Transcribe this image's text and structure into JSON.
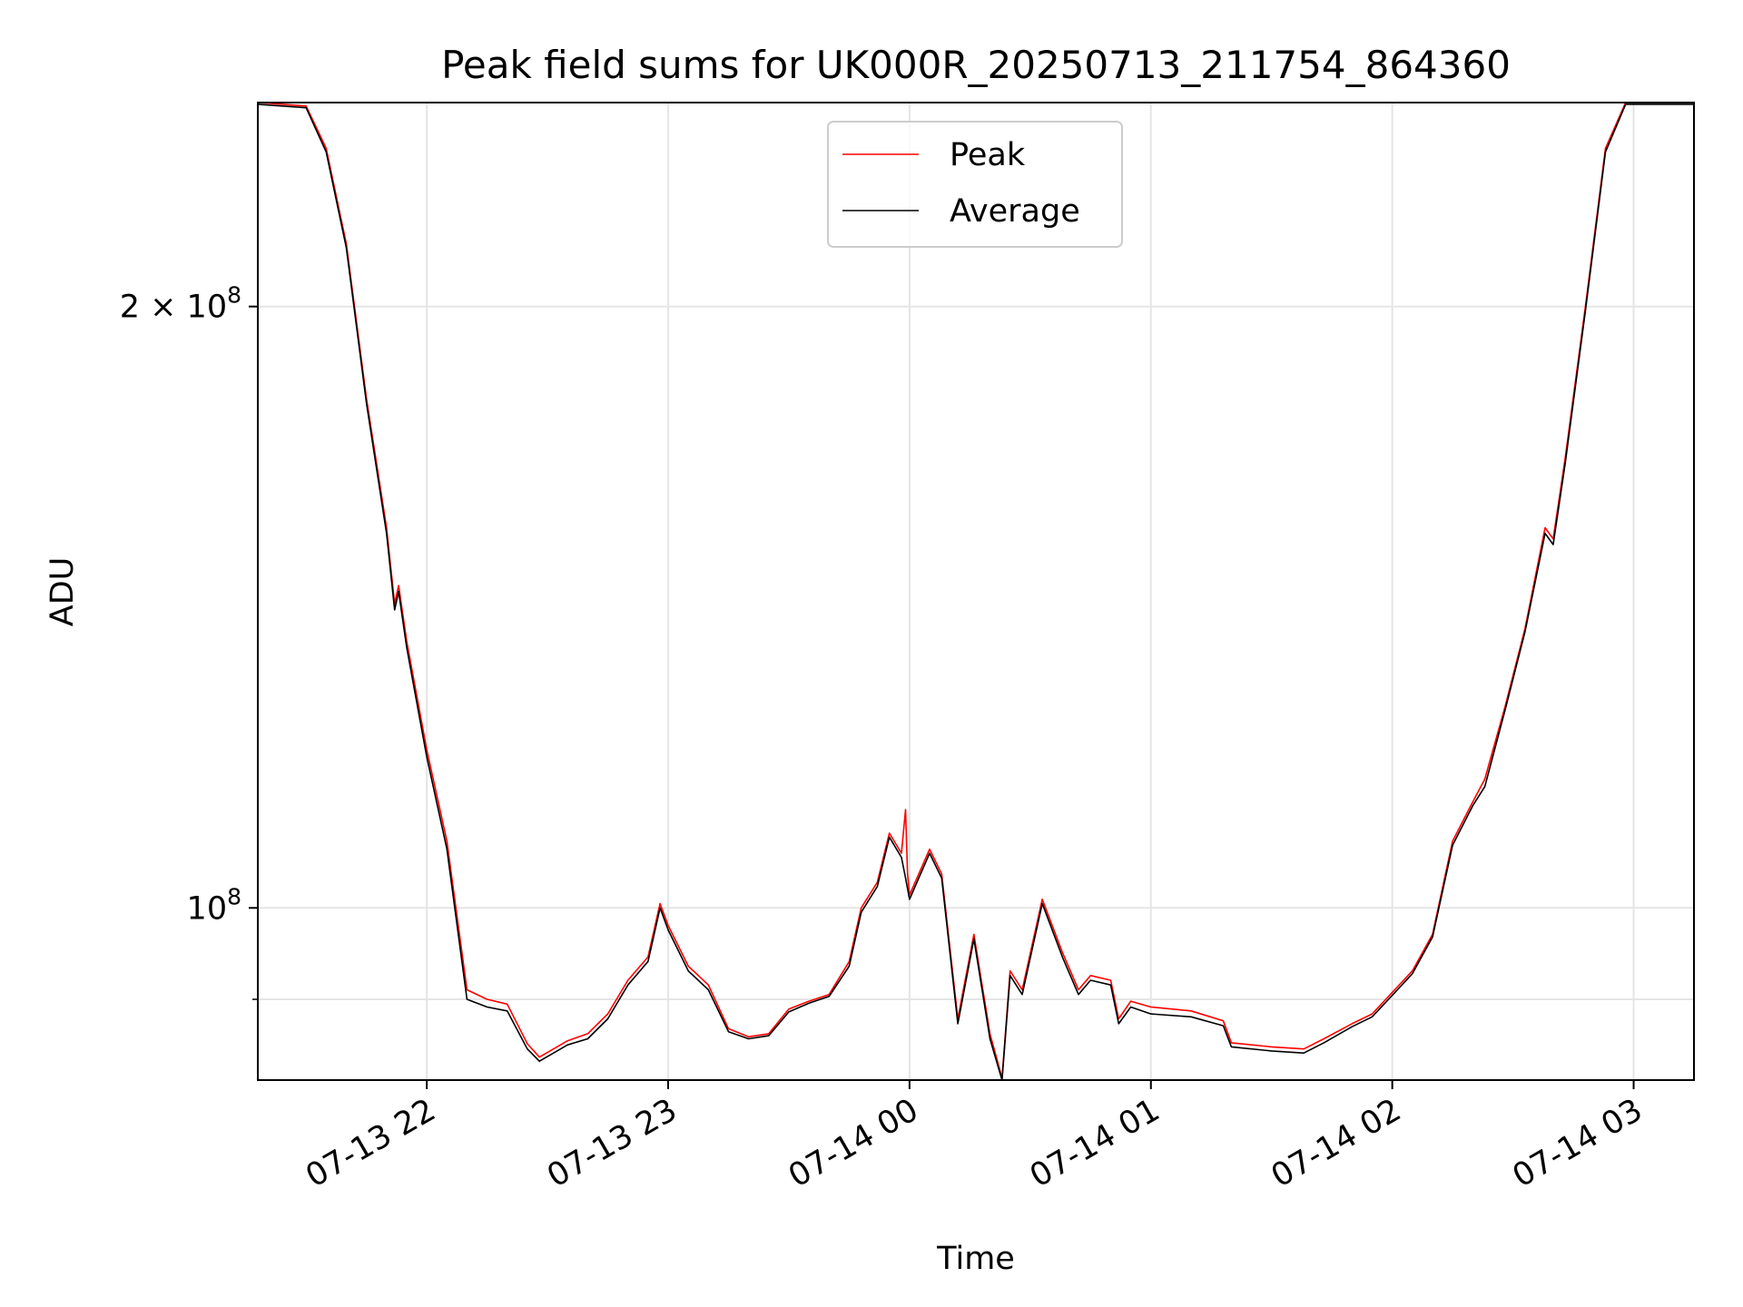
{
  "chart_data": {
    "type": "line",
    "title": "Peak field sums for UK000R_20250713_211754_864360",
    "xlabel": "Time",
    "ylabel": "ADU",
    "yscale": "log",
    "ylim": [
      82000000,
      253000000
    ],
    "xlim": [
      "2025-07-13 21:18",
      "2025-07-14 03:15"
    ],
    "grid": true,
    "legend_position": "top-center",
    "x_ticks": [
      {
        "value": "2025-07-13 22:00",
        "label": "07-13 22"
      },
      {
        "value": "2025-07-13 23:00",
        "label": "07-13 23"
      },
      {
        "value": "2025-07-14 00:00",
        "label": "07-14 00"
      },
      {
        "value": "2025-07-14 01:00",
        "label": "07-14 01"
      },
      {
        "value": "2025-07-14 02:00",
        "label": "07-14 02"
      },
      {
        "value": "2025-07-14 03:00",
        "label": "07-14 03"
      }
    ],
    "y_ticks": [
      {
        "value": 100000000,
        "base": "10",
        "exp": "8",
        "coef": ""
      },
      {
        "value": 200000000,
        "base": "10",
        "exp": "8",
        "coef": "2 × "
      }
    ],
    "y_minor_gridlines": [
      90000000
    ],
    "series": [
      {
        "name": "Peak",
        "color": "#ff0000",
        "points": [
          [
            "2025-07-13 21:18",
            253000000
          ],
          [
            "2025-07-13 21:30",
            252000000
          ],
          [
            "2025-07-13 21:35",
            240000000
          ],
          [
            "2025-07-13 21:40",
            215000000
          ],
          [
            "2025-07-13 21:45",
            180000000
          ],
          [
            "2025-07-13 21:50",
            155000000
          ],
          [
            "2025-07-13 21:52",
            142000000
          ],
          [
            "2025-07-13 21:53",
            145000000
          ],
          [
            "2025-07-13 21:55",
            136000000
          ],
          [
            "2025-07-13 22:00",
            120000000
          ],
          [
            "2025-07-13 22:05",
            108000000
          ],
          [
            "2025-07-13 22:10",
            91000000
          ],
          [
            "2025-07-13 22:15",
            90000000
          ],
          [
            "2025-07-13 22:20",
            89500000
          ],
          [
            "2025-07-13 22:25",
            85500000
          ],
          [
            "2025-07-13 22:28",
            84200000
          ],
          [
            "2025-07-13 22:35",
            85800000
          ],
          [
            "2025-07-13 22:40",
            86500000
          ],
          [
            "2025-07-13 22:45",
            88500000
          ],
          [
            "2025-07-13 22:50",
            92000000
          ],
          [
            "2025-07-13 22:55",
            94500000
          ],
          [
            "2025-07-13 22:58",
            100500000
          ],
          [
            "2025-07-13 23:00",
            98000000
          ],
          [
            "2025-07-13 23:05",
            93500000
          ],
          [
            "2025-07-13 23:10",
            91500000
          ],
          [
            "2025-07-13 23:15",
            87000000
          ],
          [
            "2025-07-13 23:20",
            86200000
          ],
          [
            "2025-07-13 23:25",
            86500000
          ],
          [
            "2025-07-13 23:30",
            89000000
          ],
          [
            "2025-07-13 23:35",
            89800000
          ],
          [
            "2025-07-13 23:40",
            90500000
          ],
          [
            "2025-07-13 23:45",
            94000000
          ],
          [
            "2025-07-13 23:48",
            100000000
          ],
          [
            "2025-07-13 23:52",
            103000000
          ],
          [
            "2025-07-13 23:55",
            109000000
          ],
          [
            "2025-07-13 23:58",
            106500000
          ],
          [
            "2025-07-13 23:59",
            112000000
          ],
          [
            "2025-07-13 23:59:30",
            104000000
          ],
          [
            "2025-07-14 00:00",
            101500000
          ],
          [
            "2025-07-14 00:05",
            107000000
          ],
          [
            "2025-07-14 00:08",
            104000000
          ],
          [
            "2025-07-14 00:12",
            88000000
          ],
          [
            "2025-07-14 00:16",
            97000000
          ],
          [
            "2025-07-14 00:20",
            86500000
          ],
          [
            "2025-07-14 00:23",
            82200000
          ],
          [
            "2025-07-14 00:25",
            93000000
          ],
          [
            "2025-07-14 00:28",
            91000000
          ],
          [
            "2025-07-14 00:33",
            101000000
          ],
          [
            "2025-07-14 00:38",
            95000000
          ],
          [
            "2025-07-14 00:42",
            91000000
          ],
          [
            "2025-07-14 00:45",
            92500000
          ],
          [
            "2025-07-14 00:50",
            92000000
          ],
          [
            "2025-07-14 00:52",
            88000000
          ],
          [
            "2025-07-14 00:55",
            89800000
          ],
          [
            "2025-07-14 01:00",
            89200000
          ],
          [
            "2025-07-14 01:10",
            88800000
          ],
          [
            "2025-07-14 01:18",
            87800000
          ],
          [
            "2025-07-14 01:20",
            85600000
          ],
          [
            "2025-07-14 01:30",
            85200000
          ],
          [
            "2025-07-14 01:38",
            85000000
          ],
          [
            "2025-07-14 01:43",
            86000000
          ],
          [
            "2025-07-14 01:50",
            87500000
          ],
          [
            "2025-07-14 01:55",
            88500000
          ],
          [
            "2025-07-14 02:05",
            93000000
          ],
          [
            "2025-07-14 02:10",
            97000000
          ],
          [
            "2025-07-14 02:15",
            108000000
          ],
          [
            "2025-07-14 02:20",
            113000000
          ],
          [
            "2025-07-14 02:23",
            116000000
          ],
          [
            "2025-07-14 02:28",
            126000000
          ],
          [
            "2025-07-14 02:33",
            138000000
          ],
          [
            "2025-07-14 02:38",
            155000000
          ],
          [
            "2025-07-14 02:40",
            153000000
          ],
          [
            "2025-07-14 02:43",
            168000000
          ],
          [
            "2025-07-14 02:48",
            200000000
          ],
          [
            "2025-07-14 02:53",
            240000000
          ],
          [
            "2025-07-14 02:58",
            253000000
          ],
          [
            "2025-07-14 03:15",
            253000000
          ]
        ]
      },
      {
        "name": "Average",
        "color": "#000000",
        "points": [
          [
            "2025-07-13 21:18",
            252500000
          ],
          [
            "2025-07-13 21:30",
            251500000
          ],
          [
            "2025-07-13 21:35",
            239000000
          ],
          [
            "2025-07-13 21:40",
            214000000
          ],
          [
            "2025-07-13 21:45",
            179000000
          ],
          [
            "2025-07-13 21:50",
            154000000
          ],
          [
            "2025-07-13 21:52",
            141000000
          ],
          [
            "2025-07-13 21:53",
            144000000
          ],
          [
            "2025-07-13 21:55",
            135000000
          ],
          [
            "2025-07-13 22:00",
            119000000
          ],
          [
            "2025-07-13 22:05",
            107000000
          ],
          [
            "2025-07-13 22:10",
            90000000
          ],
          [
            "2025-07-13 22:15",
            89200000
          ],
          [
            "2025-07-13 22:20",
            88800000
          ],
          [
            "2025-07-13 22:25",
            85000000
          ],
          [
            "2025-07-13 22:28",
            83800000
          ],
          [
            "2025-07-13 22:35",
            85400000
          ],
          [
            "2025-07-13 22:40",
            86000000
          ],
          [
            "2025-07-13 22:45",
            88000000
          ],
          [
            "2025-07-13 22:50",
            91500000
          ],
          [
            "2025-07-13 22:55",
            94000000
          ],
          [
            "2025-07-13 22:58",
            100000000
          ],
          [
            "2025-07-13 23:00",
            97500000
          ],
          [
            "2025-07-13 23:05",
            93000000
          ],
          [
            "2025-07-13 23:10",
            91000000
          ],
          [
            "2025-07-13 23:15",
            86700000
          ],
          [
            "2025-07-13 23:20",
            86000000
          ],
          [
            "2025-07-13 23:25",
            86300000
          ],
          [
            "2025-07-13 23:30",
            88700000
          ],
          [
            "2025-07-13 23:35",
            89600000
          ],
          [
            "2025-07-13 23:40",
            90300000
          ],
          [
            "2025-07-13 23:45",
            93500000
          ],
          [
            "2025-07-13 23:48",
            99500000
          ],
          [
            "2025-07-13 23:52",
            102500000
          ],
          [
            "2025-07-13 23:55",
            108500000
          ],
          [
            "2025-07-13 23:58",
            106000000
          ],
          [
            "2025-07-13 23:59",
            103500000
          ],
          [
            "2025-07-14 00:00",
            101000000
          ],
          [
            "2025-07-14 00:05",
            106500000
          ],
          [
            "2025-07-14 00:08",
            103500000
          ],
          [
            "2025-07-14 00:12",
            87500000
          ],
          [
            "2025-07-14 00:16",
            96500000
          ],
          [
            "2025-07-14 00:20",
            86000000
          ],
          [
            "2025-07-14 00:23",
            82000000
          ],
          [
            "2025-07-14 00:25",
            92500000
          ],
          [
            "2025-07-14 00:28",
            90500000
          ],
          [
            "2025-07-14 00:33",
            100500000
          ],
          [
            "2025-07-14 00:38",
            94500000
          ],
          [
            "2025-07-14 00:42",
            90500000
          ],
          [
            "2025-07-14 00:45",
            92000000
          ],
          [
            "2025-07-14 00:50",
            91500000
          ],
          [
            "2025-07-14 00:52",
            87500000
          ],
          [
            "2025-07-14 00:55",
            89200000
          ],
          [
            "2025-07-14 01:00",
            88500000
          ],
          [
            "2025-07-14 01:10",
            88200000
          ],
          [
            "2025-07-14 01:18",
            87300000
          ],
          [
            "2025-07-14 01:20",
            85200000
          ],
          [
            "2025-07-14 01:30",
            84800000
          ],
          [
            "2025-07-14 01:38",
            84600000
          ],
          [
            "2025-07-14 01:43",
            85600000
          ],
          [
            "2025-07-14 01:50",
            87200000
          ],
          [
            "2025-07-14 01:55",
            88200000
          ],
          [
            "2025-07-14 02:05",
            92700000
          ],
          [
            "2025-07-14 02:10",
            96700000
          ],
          [
            "2025-07-14 02:15",
            107500000
          ],
          [
            "2025-07-14 02:20",
            112500000
          ],
          [
            "2025-07-14 02:23",
            115000000
          ],
          [
            "2025-07-14 02:28",
            125500000
          ],
          [
            "2025-07-14 02:33",
            137500000
          ],
          [
            "2025-07-14 02:38",
            154000000
          ],
          [
            "2025-07-14 02:40",
            152000000
          ],
          [
            "2025-07-14 02:43",
            167000000
          ],
          [
            "2025-07-14 02:48",
            199000000
          ],
          [
            "2025-07-14 02:53",
            239000000
          ],
          [
            "2025-07-14 02:58",
            252500000
          ],
          [
            "2025-07-14 03:15",
            252500000
          ]
        ]
      }
    ]
  }
}
